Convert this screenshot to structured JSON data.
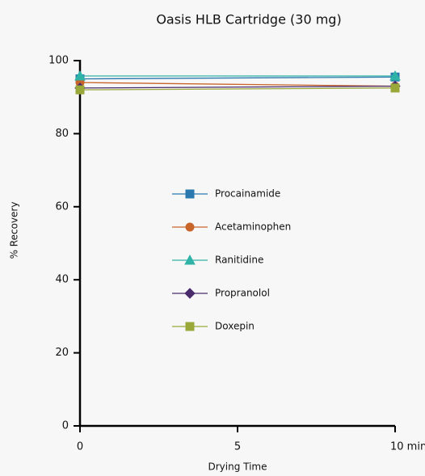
{
  "chart_data": {
    "type": "line",
    "title": "Oasis HLB Cartridge (30 mg)",
    "xlabel": "Drying Time",
    "ylabel": "% Recovery",
    "x": [
      0,
      10
    ],
    "xlim": [
      0,
      10
    ],
    "xticks": [
      0,
      5,
      {
        "value": 10,
        "label": "10 min"
      }
    ],
    "ylim": [
      0,
      100
    ],
    "yticks": [
      0,
      20,
      40,
      60,
      80,
      100
    ],
    "series": [
      {
        "name": "Procainamide",
        "color": "#2a78ae",
        "marker": "square",
        "values": [
          95,
          95.5
        ]
      },
      {
        "name": "Acetaminophen",
        "color": "#c9652a",
        "marker": "circle",
        "values": [
          94,
          93
        ]
      },
      {
        "name": "Ranitidine",
        "color": "#2fb3a6",
        "marker": "triangle",
        "values": [
          95.8,
          95.8
        ]
      },
      {
        "name": "Propranolol",
        "color": "#4a2c6c",
        "marker": "diamond",
        "values": [
          92.5,
          93
        ]
      },
      {
        "name": "Doxepin",
        "color": "#9aa83a",
        "marker": "square",
        "values": [
          92,
          92.5
        ]
      }
    ]
  }
}
